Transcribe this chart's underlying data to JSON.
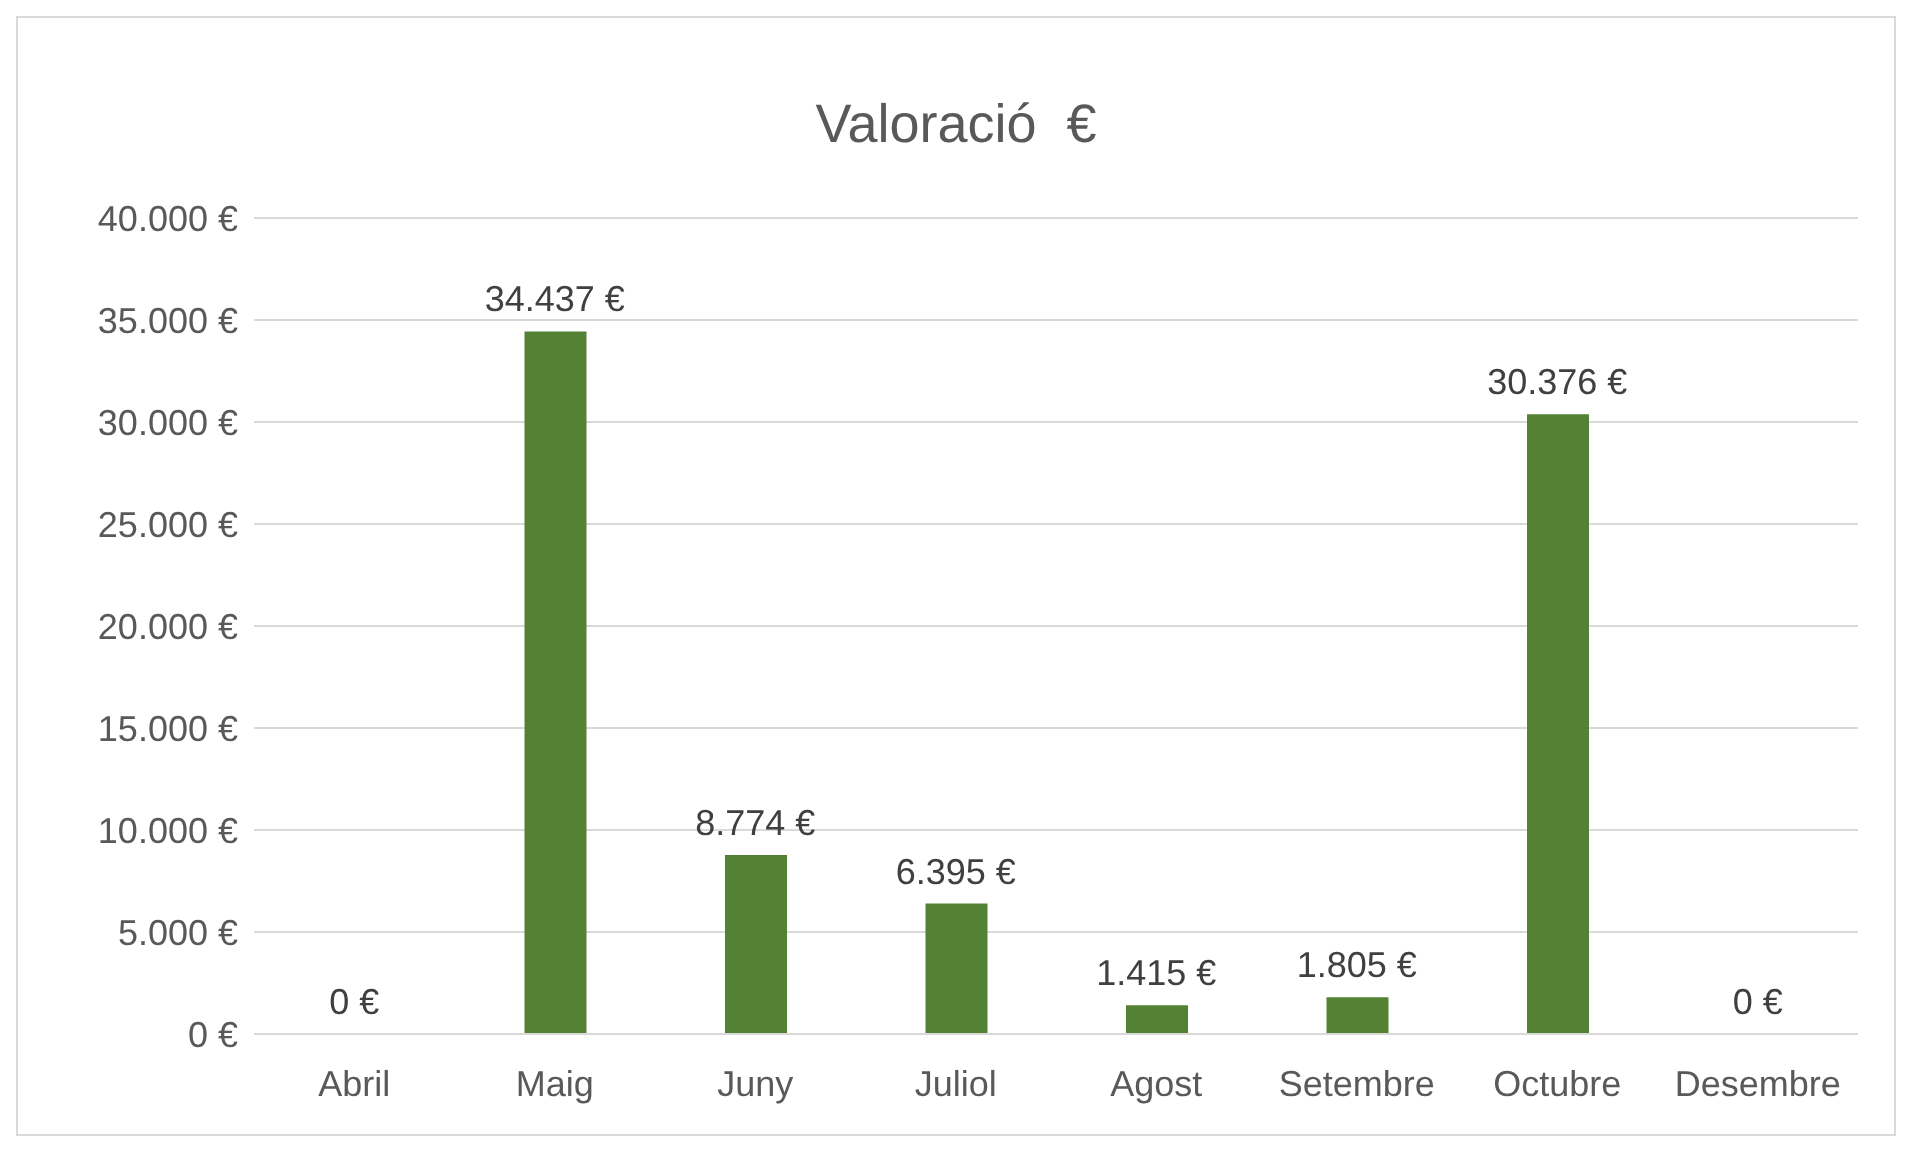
{
  "chart_data": {
    "type": "bar",
    "title": "Valoració  €",
    "categories": [
      "Abril",
      "Maig",
      "Juny",
      "Juliol",
      "Agost",
      "Setembre",
      "Octubre",
      "Desembre"
    ],
    "values": [
      0,
      34437,
      8774,
      6395,
      1415,
      1805,
      30376,
      0
    ],
    "value_labels": [
      "0 €",
      "34.437 €",
      "8.774 €",
      "6.395 €",
      "1.415 €",
      "1.805 €",
      "30.376 €",
      "0 €"
    ],
    "color": "#548235",
    "ylim": [
      0,
      40000
    ],
    "yticks": [
      {
        "value": 0,
        "label": "0 €"
      },
      {
        "value": 5000,
        "label": "5.000 €"
      },
      {
        "value": 10000,
        "label": "10.000 €"
      },
      {
        "value": 15000,
        "label": "15.000 €"
      },
      {
        "value": 20000,
        "label": "20.000 €"
      },
      {
        "value": 25000,
        "label": "25.000 €"
      },
      {
        "value": 30000,
        "label": "30.000 €"
      },
      {
        "value": 35000,
        "label": "35.000 €"
      },
      {
        "value": 40000,
        "label": "40.000 €"
      }
    ],
    "grid": "y",
    "legend": false
  }
}
